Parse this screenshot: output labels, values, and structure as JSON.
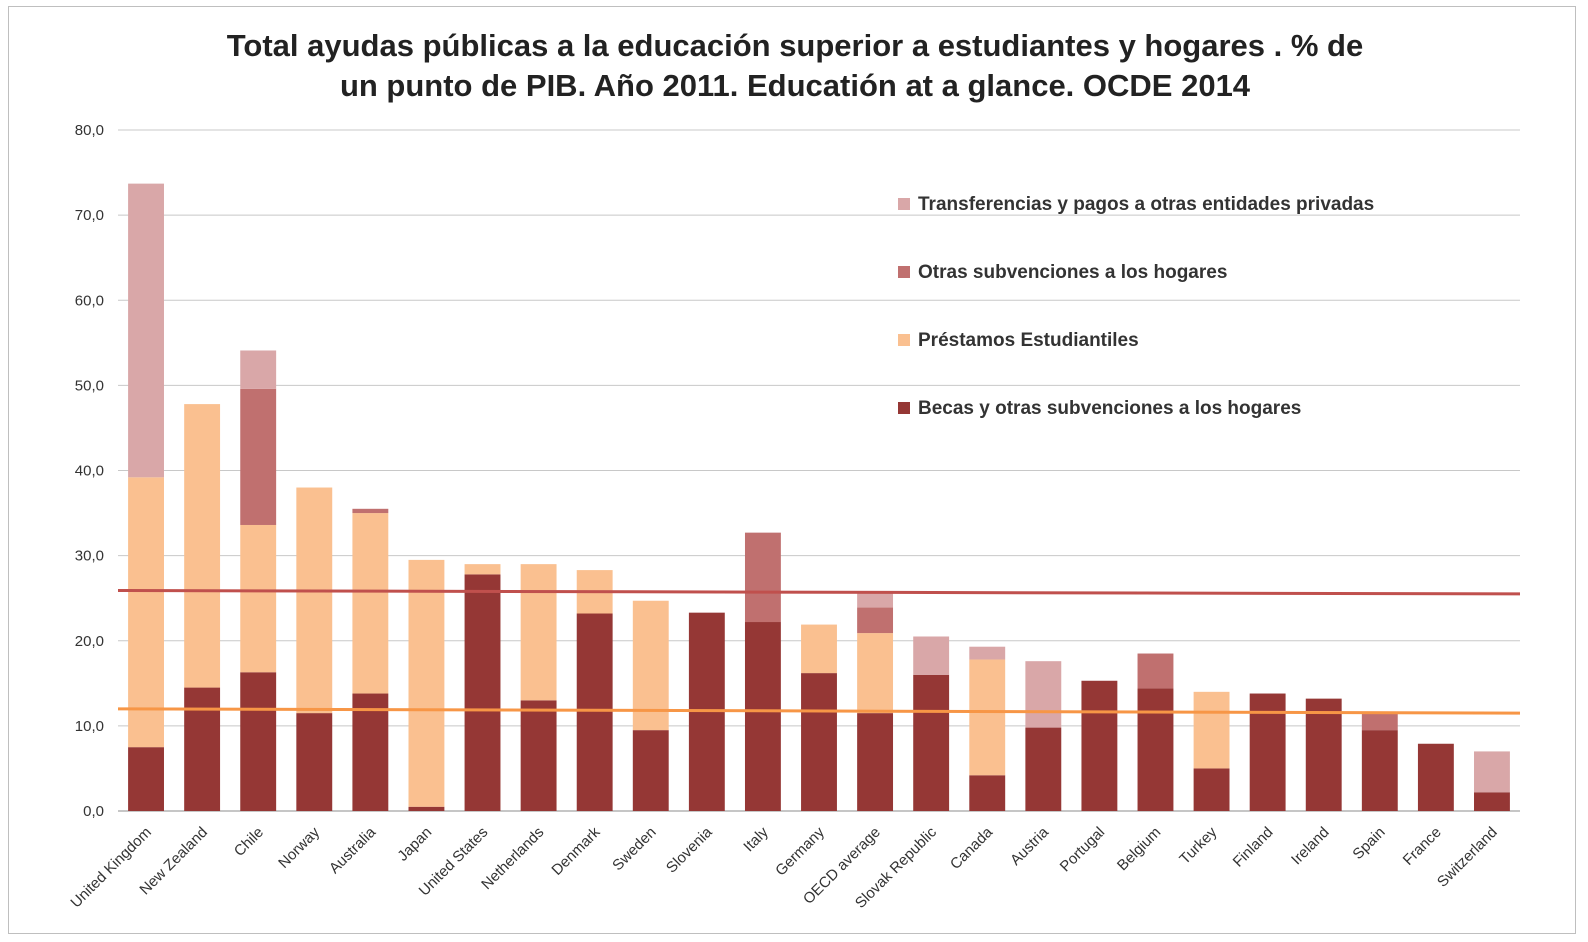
{
  "chart_data": {
    "type": "bar",
    "stacked": true,
    "title_lines": [
      "Total ayudas públicas a la educación superior a estudiantes y hogares . % de",
      "un punto de PIB. Año 2011. Educatión at a glance. OCDE 2014"
    ],
    "xlabel": "",
    "ylabel": "",
    "ylim": [
      0,
      80
    ],
    "yticks": [
      "0,0",
      "10,0",
      "20,0",
      "30,0",
      "40,0",
      "50,0",
      "60,0",
      "70,0",
      "80,0"
    ],
    "grid": true,
    "legend_position": "top-right",
    "categories": [
      "United Kingdom",
      "New Zealand",
      "Chile",
      "Norway",
      "Australia",
      "Japan",
      "United States",
      "Netherlands",
      "Denmark",
      "Sweden",
      "Slovenia",
      "Italy",
      "Germany",
      "OECD average",
      "Slovak Republic",
      "Canada",
      "Austria",
      "Portugal",
      "Belgium",
      "Turkey",
      "Finland",
      "Ireland",
      "Spain",
      "France",
      "Switzerland"
    ],
    "series": [
      {
        "name": "Becas y otras subvenciones a los hogares",
        "color": "#953735",
        "values": [
          7.5,
          14.5,
          16.3,
          11.5,
          13.8,
          0.5,
          27.8,
          13.0,
          23.2,
          9.5,
          23.3,
          22.2,
          16.2,
          11.5,
          16.0,
          4.2,
          9.8,
          15.3,
          14.4,
          5.0,
          13.8,
          13.2,
          9.5,
          7.9,
          2.2
        ]
      },
      {
        "name": "Préstamos Estudiantiles",
        "color": "#fac090",
        "values": [
          31.7,
          33.3,
          17.3,
          26.5,
          21.2,
          29.0,
          1.2,
          16.0,
          5.1,
          15.2,
          0.0,
          0.0,
          5.7,
          9.4,
          0.0,
          13.6,
          0.0,
          0.0,
          0.0,
          9.0,
          0.0,
          0.0,
          0.0,
          0.0,
          0.0
        ]
      },
      {
        "name": "Otras subvenciones a los hogares",
        "color": "#c0706f",
        "values": [
          0.0,
          0.0,
          16.0,
          0.0,
          0.5,
          0.0,
          0.0,
          0.0,
          0.0,
          0.0,
          0.0,
          10.5,
          0.0,
          3.0,
          0.0,
          0.0,
          0.0,
          0.0,
          4.1,
          0.0,
          0.0,
          0.0,
          2.0,
          0.0,
          0.0
        ]
      },
      {
        "name": "Transferencias y pagos a otras entidades privadas",
        "color": "#d9a7a8",
        "values": [
          34.5,
          0.0,
          4.5,
          0.0,
          0.0,
          0.0,
          0.0,
          0.0,
          0.0,
          0.0,
          0.0,
          0.0,
          0.0,
          1.8,
          4.5,
          1.5,
          7.8,
          0.0,
          0.0,
          0.0,
          0.0,
          0.0,
          0.0,
          0.0,
          4.8
        ]
      }
    ],
    "legend_order": [
      3,
      2,
      1,
      0
    ],
    "reference_lines": [
      {
        "color": "#c0504d",
        "y_start": 25.9,
        "y_end": 25.5
      },
      {
        "color": "#f79646",
        "y_start": 12.0,
        "y_end": 11.5
      }
    ]
  }
}
